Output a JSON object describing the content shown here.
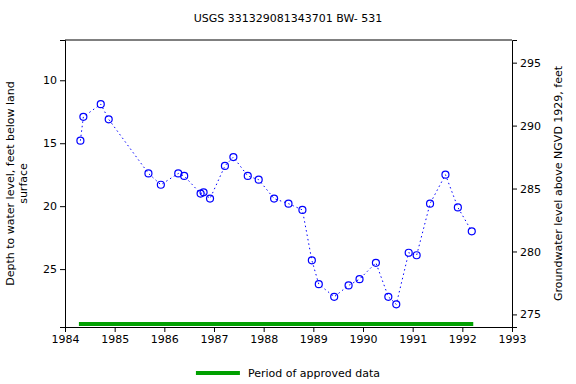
{
  "chart_data": {
    "type": "line",
    "title": "USGS 331329081343701 BW- 531",
    "ylabel": [
      "Depth to water level, feet below land",
      "surface"
    ],
    "y2label": "Groundwater level above NGVD 1929, feet",
    "x": [
      1984.31,
      1984.37,
      1984.72,
      1984.88,
      1985.68,
      1985.93,
      1986.28,
      1986.4,
      1986.73,
      1986.79,
      1986.92,
      1987.22,
      1987.39,
      1987.68,
      1987.9,
      1988.21,
      1988.5,
      1988.78,
      1988.97,
      1989.11,
      1989.42,
      1989.71,
      1989.93,
      1990.26,
      1990.51,
      1990.67,
      1990.92,
      1991.08,
      1991.35,
      1991.66,
      1991.91,
      1992.19
    ],
    "series": [
      {
        "color": "#0000ff",
        "marker": "circle",
        "line_style": "dotted",
        "values": [
          14.8,
          12.9,
          11.9,
          13.1,
          17.4,
          18.3,
          17.4,
          17.6,
          19.0,
          18.9,
          19.4,
          16.8,
          16.1,
          17.6,
          17.9,
          19.4,
          19.8,
          20.3,
          24.3,
          26.2,
          27.2,
          26.3,
          25.8,
          24.5,
          27.2,
          27.8,
          23.7,
          23.9,
          19.8,
          17.5,
          20.1,
          22.0
        ]
      }
    ],
    "approved_period": {
      "name": "Period of approved data",
      "color": "#00a000",
      "start": 1984.28,
      "end": 1992.22
    },
    "xlim": [
      1984,
      1993
    ],
    "xticks": [
      1984,
      1985,
      1986,
      1987,
      1988,
      1989,
      1990,
      1991,
      1992,
      1993
    ],
    "ylim": [
      29.6,
      6.8
    ],
    "yticks": [
      10,
      15,
      20,
      25
    ],
    "y2lim": [
      274,
      296.8
    ],
    "y2ticks": [
      275,
      280,
      285,
      290,
      295
    ],
    "grid": false,
    "legend": "bottom"
  }
}
